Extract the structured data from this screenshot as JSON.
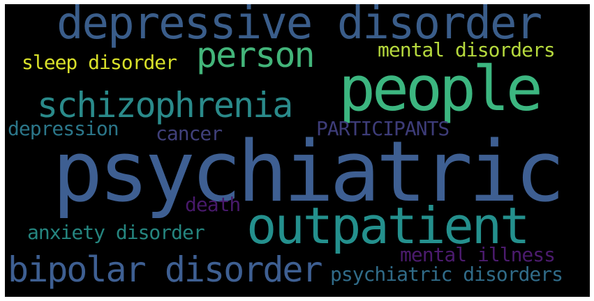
{
  "words": {
    "psychiatric": {
      "text": "psychiatric",
      "color": "#3e5f92"
    },
    "people": {
      "text": "people",
      "color": "#3cb680"
    },
    "outpatient": {
      "text": "outpatient",
      "color": "#24908d"
    },
    "depressive_disorder": {
      "text": "depressive disorder",
      "color": "#3a5d8a"
    },
    "bipolar_disorder": {
      "text": "bipolar disorder",
      "color": "#3e5f92"
    },
    "schizophrenia": {
      "text": "schizophrenia",
      "color": "#2a8a8a"
    },
    "person": {
      "text": "person",
      "color": "#43b57a"
    },
    "mental_disorders": {
      "text": "mental disorders",
      "color": "#b5d83d"
    },
    "sleep_disorder": {
      "text": "sleep disorder",
      "color": "#d8e02a"
    },
    "depression": {
      "text": "depression",
      "color": "#2b7689"
    },
    "cancer": {
      "text": "cancer",
      "color": "#40407a"
    },
    "participants": {
      "text": "PARTICIPANTS",
      "color": "#3d3c78"
    },
    "death": {
      "text": "death",
      "color": "#47196a"
    },
    "anxiety_disorder": {
      "text": "anxiety disorder",
      "color": "#25857f"
    },
    "mental_illness": {
      "text": "mental illness",
      "color": "#4b1b6d"
    },
    "psychiatric_disorders": {
      "text": "psychiatric disorders",
      "color": "#306b88"
    }
  }
}
